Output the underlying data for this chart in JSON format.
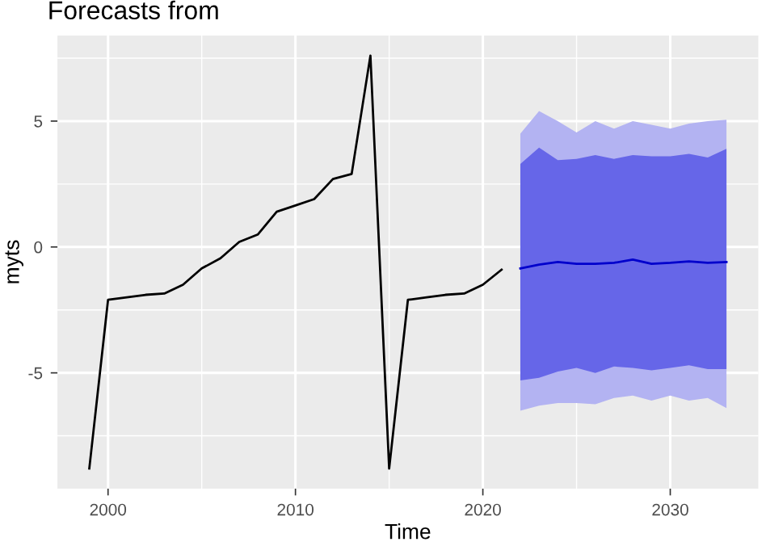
{
  "chart_data": {
    "type": "line",
    "title": "Forecasts from",
    "xlabel": "Time",
    "ylabel": "myts",
    "xlim": [
      1997.3,
      2034.7
    ],
    "ylim": [
      -9.6,
      8.4
    ],
    "xticks": [
      2000,
      2010,
      2020,
      2030
    ],
    "yticks": [
      -5,
      0,
      5
    ],
    "grid": true,
    "line_style": "solid",
    "marker": "none",
    "series": [
      {
        "color": "#000000",
        "x": [
          1999,
          2000,
          2001,
          2002,
          2003,
          2004,
          2005,
          2006,
          2007,
          2008,
          2009,
          2010,
          2011,
          2012,
          2013,
          2014,
          2015,
          2016,
          2017,
          2018,
          2019,
          2020,
          2021
        ],
        "values": [
          -8.8,
          -2.1,
          -2.0,
          -1.9,
          -1.85,
          -1.5,
          -0.85,
          -0.45,
          0.2,
          0.5,
          1.4,
          1.65,
          1.9,
          2.7,
          2.9,
          7.6,
          -8.8,
          -2.1,
          -2.0,
          -1.9,
          -1.85,
          -1.5,
          -0.9
        ]
      },
      {
        "type": "area",
        "color": "#b3b3f2",
        "x": [
          2022,
          2023,
          2024,
          2025,
          2026,
          2027,
          2028,
          2029,
          2030,
          2031,
          2032,
          2033
        ],
        "values": [
          null,
          null,
          null,
          null,
          null,
          null,
          null,
          null,
          null,
          null,
          null,
          null
        ],
        "lower": [
          -6.5,
          -6.3,
          -6.2,
          -6.2,
          -6.25,
          -6.0,
          -5.9,
          -6.1,
          -5.9,
          -6.1,
          -6.0,
          -6.4
        ],
        "upper": [
          4.5,
          5.4,
          5.0,
          4.55,
          5.0,
          4.7,
          5.0,
          4.85,
          4.7,
          4.9,
          5.0,
          5.05
        ]
      },
      {
        "type": "area",
        "color": "#6666e8",
        "x": [
          2022,
          2023,
          2024,
          2025,
          2026,
          2027,
          2028,
          2029,
          2030,
          2031,
          2032,
          2033
        ],
        "values": [
          null,
          null,
          null,
          null,
          null,
          null,
          null,
          null,
          null,
          null,
          null,
          null
        ],
        "lower": [
          -5.3,
          -5.2,
          -4.95,
          -4.8,
          -5.0,
          -4.75,
          -4.8,
          -4.9,
          -4.8,
          -4.7,
          -4.85,
          -4.85
        ],
        "upper": [
          3.3,
          3.95,
          3.45,
          3.5,
          3.65,
          3.5,
          3.65,
          3.6,
          3.6,
          3.7,
          3.55,
          3.9
        ]
      },
      {
        "color": "#0000cc",
        "x": [
          2022,
          2023,
          2024,
          2025,
          2026,
          2027,
          2028,
          2029,
          2030,
          2031,
          2032,
          2033
        ],
        "values": [
          -0.85,
          -0.7,
          -0.6,
          -0.67,
          -0.67,
          -0.63,
          -0.5,
          -0.67,
          -0.63,
          -0.57,
          -0.63,
          -0.6
        ]
      }
    ]
  }
}
